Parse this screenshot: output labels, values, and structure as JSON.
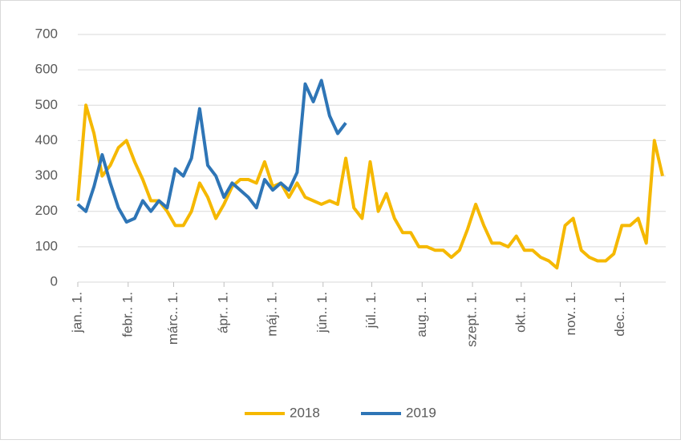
{
  "chart_data": {
    "type": "line",
    "x": [
      0,
      5,
      10,
      15,
      20,
      25,
      30,
      35,
      40,
      45,
      50,
      55,
      60,
      65,
      70,
      75,
      80,
      85,
      90,
      95,
      100,
      105,
      110,
      115,
      120,
      125,
      130,
      135,
      140,
      145,
      150,
      155,
      160,
      165,
      170,
      175,
      180,
      185,
      190,
      195,
      200,
      205,
      210,
      215,
      220,
      225,
      230,
      235,
      240,
      245,
      250,
      255,
      260,
      265,
      270,
      275,
      280,
      285,
      290,
      295,
      300,
      305,
      310,
      315,
      320,
      325,
      330,
      335,
      340,
      345,
      350,
      355,
      360
    ],
    "series": [
      {
        "name": "2018",
        "color": "#f5b800",
        "values": [
          230,
          500,
          420,
          300,
          330,
          380,
          400,
          340,
          290,
          230,
          230,
          200,
          160,
          160,
          200,
          280,
          240,
          180,
          220,
          270,
          290,
          290,
          280,
          340,
          270,
          280,
          240,
          280,
          240,
          230,
          220,
          230,
          220,
          350,
          210,
          180,
          340,
          200,
          250,
          180,
          140,
          140,
          100,
          100,
          90,
          90,
          70,
          90,
          150,
          220,
          160,
          110,
          110,
          100,
          130,
          90,
          90,
          70,
          60,
          40,
          160,
          180,
          90,
          70,
          60,
          60,
          80,
          160,
          160,
          180,
          110,
          400,
          300
        ]
      },
      {
        "name": "2019",
        "color": "#2e75b6",
        "values": [
          220,
          200,
          270,
          360,
          280,
          210,
          170,
          180,
          230,
          200,
          230,
          210,
          320,
          300,
          350,
          490,
          330,
          300,
          240,
          280,
          260,
          240,
          210,
          290,
          260,
          280,
          260,
          310,
          560,
          510,
          570,
          470,
          420,
          450,
          null,
          null,
          null,
          null,
          null,
          null,
          null,
          null,
          null,
          null,
          null,
          null,
          null,
          null,
          null,
          null,
          null,
          null,
          null,
          null,
          null,
          null,
          null,
          null,
          null,
          null,
          null,
          null,
          null,
          null,
          null,
          null,
          null,
          null,
          null,
          null,
          null,
          null,
          null
        ]
      }
    ],
    "xlim": [
      0,
      362
    ],
    "xticks": [
      {
        "value": 0,
        "label": "jan.. 1."
      },
      {
        "value": 31,
        "label": "febr.. 1."
      },
      {
        "value": 59,
        "label": "márc.. 1."
      },
      {
        "value": 90,
        "label": "ápr.. 1."
      },
      {
        "value": 120,
        "label": "máj.. 1."
      },
      {
        "value": 151,
        "label": "jún.. 1."
      },
      {
        "value": 181,
        "label": "júl.. 1."
      },
      {
        "value": 212,
        "label": "aug.. 1."
      },
      {
        "value": 243,
        "label": "szept.. 1."
      },
      {
        "value": 273,
        "label": "okt.. 1."
      },
      {
        "value": 304,
        "label": "nov.. 1."
      },
      {
        "value": 334,
        "label": "dec.. 1."
      }
    ],
    "ylim": [
      0,
      700
    ],
    "yticks": [
      0,
      100,
      200,
      300,
      400,
      500,
      600,
      700
    ],
    "grid": true,
    "legend": "bottom"
  }
}
